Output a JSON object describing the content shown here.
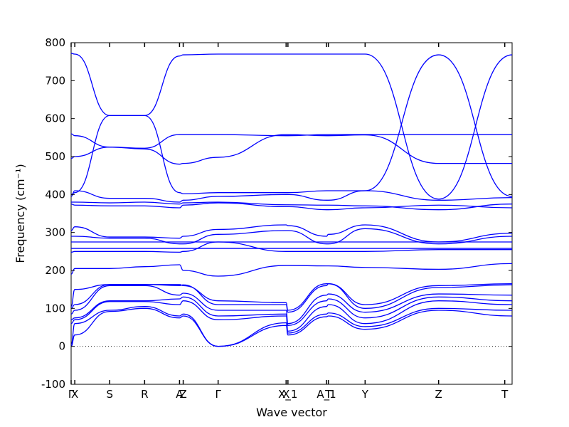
{
  "chart_data": {
    "type": "line",
    "title": "",
    "xlabel": "Wave vector",
    "ylabel": "Frequency (cm⁻¹)",
    "ylim": [
      -100,
      800
    ],
    "yticks": [
      -100,
      0,
      100,
      200,
      300,
      400,
      500,
      600,
      700,
      800
    ],
    "grid": false,
    "line_color": "#0000ff",
    "zero_reference_line": {
      "y": 0,
      "style": "dotted"
    },
    "xlim": [
      0,
      12.0
    ],
    "high_symmetry_points": [
      {
        "label": "Γ",
        "x": 0.0
      },
      {
        "label": "X",
        "x": 0.1
      },
      {
        "label": "S",
        "x": 1.05
      },
      {
        "label": "R",
        "x": 2.0
      },
      {
        "label": "A",
        "x": 2.95
      },
      {
        "label": "Z",
        "x": 3.05
      },
      {
        "label": "Γ",
        "x": 4.0
      },
      {
        "label": "X",
        "x": 5.85
      },
      {
        "label": "X_1",
        "x": 5.9
      },
      {
        "label": "A_1",
        "x": 6.95
      },
      {
        "label": "T",
        "x": 7.0
      },
      {
        "label": "Y",
        "x": 8.0
      },
      {
        "label": "Z",
        "x": 10.0
      },
      {
        "label": "T",
        "x": 11.8
      }
    ],
    "x": [
      0,
      0.1,
      1.05,
      2.0,
      2.95,
      3.05,
      4.0,
      5.85,
      5.9,
      6.95,
      7.0,
      8.0,
      10.0,
      12.0
    ],
    "series": [
      {
        "values": [
          0,
          30,
          92,
          100,
          75,
          80,
          0,
          55,
          30,
          78,
          80,
          45,
          95,
          80
        ]
      },
      {
        "values": [
          5,
          60,
          95,
          105,
          80,
          85,
          0,
          62,
          35,
          85,
          88,
          52,
          100,
          95
        ]
      },
      {
        "values": [
          60,
          70,
          118,
          118,
          110,
          120,
          70,
          80,
          40,
          105,
          110,
          60,
          120,
          110
        ]
      },
      {
        "values": [
          70,
          75,
          120,
          120,
          125,
          130,
          80,
          85,
          55,
          120,
          125,
          75,
          130,
          120
        ]
      },
      {
        "values": [
          85,
          95,
          160,
          160,
          135,
          140,
          95,
          95,
          60,
          135,
          138,
          90,
          138,
          135
        ]
      },
      {
        "values": [
          100,
          110,
          163,
          163,
          160,
          162,
          110,
          110,
          90,
          160,
          165,
          100,
          155,
          162
        ]
      },
      {
        "values": [
          105,
          150,
          163,
          163,
          163,
          160,
          120,
          115,
          95,
          165,
          165,
          110,
          160,
          165
        ]
      },
      {
        "values": [
          190,
          205,
          205,
          210,
          215,
          200,
          185,
          213,
          213,
          212,
          212,
          208,
          203,
          218
        ]
      },
      {
        "values": [
          248,
          250,
          250,
          250,
          248,
          250,
          275,
          250,
          250,
          250,
          250,
          250,
          255,
          255
        ]
      },
      {
        "values": [
          258,
          258,
          258,
          258,
          258,
          258,
          258,
          258,
          258,
          258,
          258,
          258,
          258,
          258
        ]
      },
      {
        "values": [
          275,
          275,
          275,
          275,
          275,
          275,
          275,
          275,
          275,
          275,
          275,
          275,
          275,
          275
        ]
      },
      {
        "values": [
          290,
          290,
          285,
          285,
          270,
          270,
          295,
          305,
          305,
          270,
          270,
          310,
          270,
          290
        ]
      },
      {
        "values": [
          305,
          315,
          288,
          288,
          285,
          290,
          308,
          320,
          318,
          290,
          295,
          320,
          275,
          298
        ]
      },
      {
        "values": [
          375,
          372,
          370,
          370,
          365,
          372,
          378,
          368,
          368,
          360,
          360,
          365,
          372,
          365
        ]
      },
      {
        "values": [
          380,
          380,
          378,
          380,
          375,
          378,
          380,
          373,
          373,
          372,
          372,
          370,
          360,
          375
        ]
      },
      {
        "values": [
          395,
          410,
          390,
          390,
          380,
          385,
          395,
          400,
          400,
          385,
          385,
          410,
          385,
          392
        ]
      },
      {
        "values": [
          400,
          405,
          608,
          608,
          765,
          768,
          770,
          770,
          770,
          770,
          770,
          770,
          388,
          768
        ]
      },
      {
        "values": [
          495,
          500,
          525,
          520,
          480,
          482,
          498,
          558,
          558,
          555,
          555,
          557,
          482,
          482
        ]
      },
      {
        "values": [
          560,
          555,
          525,
          522,
          558,
          558,
          558,
          555,
          555,
          558,
          558,
          558,
          558,
          558
        ]
      },
      {
        "values": [
          772,
          770,
          608,
          608,
          405,
          402,
          405,
          405,
          405,
          410,
          410,
          410,
          768,
          395
        ]
      }
    ]
  }
}
